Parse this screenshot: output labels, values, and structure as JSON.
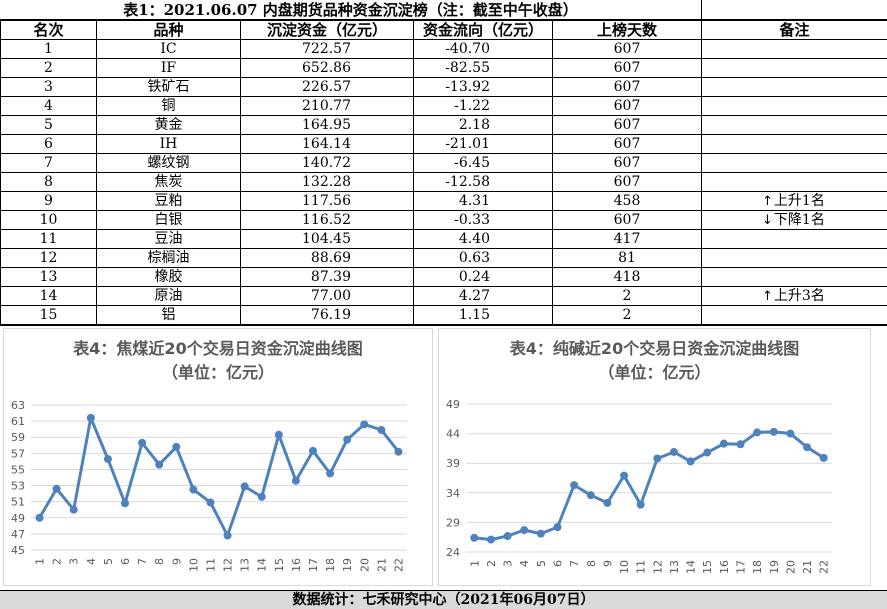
{
  "title": "表1：2021.06.07 内盘期货品种资金沉淀榜（注：截至中午收盘）",
  "headers": [
    "名次",
    "品种",
    "沉淀资金（亿元）",
    "资金流向（亿元）",
    "上榜天数",
    "备注"
  ],
  "rows": [
    {
      "rank": "1",
      "name": "IC",
      "deposit": "722.57",
      "flow": "-40.70",
      "days": "607",
      "note": ""
    },
    {
      "rank": "2",
      "name": "IF",
      "deposit": "652.86",
      "flow": "-82.55",
      "days": "607",
      "note": ""
    },
    {
      "rank": "3",
      "name": "铁矿石",
      "deposit": "226.57",
      "flow": "-13.92",
      "days": "607",
      "note": ""
    },
    {
      "rank": "4",
      "name": "铜",
      "deposit": "210.77",
      "flow": "-1.22",
      "days": "607",
      "note": ""
    },
    {
      "rank": "5",
      "name": "黄金",
      "deposit": "164.95",
      "flow": "2.18",
      "days": "607",
      "note": ""
    },
    {
      "rank": "6",
      "name": "IH",
      "deposit": "164.14",
      "flow": "-21.01",
      "days": "607",
      "note": ""
    },
    {
      "rank": "7",
      "name": "螺纹钢",
      "deposit": "140.72",
      "flow": "-6.45",
      "days": "607",
      "note": ""
    },
    {
      "rank": "8",
      "name": "焦炭",
      "deposit": "132.28",
      "flow": "-12.58",
      "days": "607",
      "note": ""
    },
    {
      "rank": "9",
      "name": "豆粕",
      "deposit": "117.56",
      "flow": "4.31",
      "days": "458",
      "note": "上升1名",
      "arrow": "↑"
    },
    {
      "rank": "10",
      "name": "白银",
      "deposit": "116.52",
      "flow": "-0.33",
      "days": "607",
      "note": "下降1名",
      "arrow": "↓"
    },
    {
      "rank": "11",
      "name": "豆油",
      "deposit": "104.45",
      "flow": "4.40",
      "days": "417",
      "note": ""
    },
    {
      "rank": "12",
      "name": "棕榈油",
      "deposit": "88.69",
      "flow": "0.63",
      "days": "81",
      "note": ""
    },
    {
      "rank": "13",
      "name": "橡胶",
      "deposit": "87.39",
      "flow": "0.24",
      "days": "418",
      "note": ""
    },
    {
      "rank": "14",
      "name": "原油",
      "deposit": "77.00",
      "flow": "4.27",
      "days": "2",
      "note": "上升3名",
      "arrow": "↑"
    },
    {
      "rank": "15",
      "name": "铝",
      "deposit": "76.19",
      "flow": "1.15",
      "days": "2",
      "note": ""
    }
  ],
  "footer": "数据统计：七禾研究中心（2021年06月07日）",
  "chart_data": [
    {
      "type": "line",
      "title": "表4：焦煤近20个交易日资金沉淀曲线图",
      "subtitle": "（单位：亿元）",
      "x": [
        "1",
        "2",
        "3",
        "4",
        "5",
        "6",
        "7",
        "8",
        "9",
        "10",
        "11",
        "12",
        "13",
        "14",
        "15",
        "16",
        "17",
        "18",
        "19",
        "20",
        "21",
        "22"
      ],
      "values": [
        49,
        52.6,
        50,
        61.4,
        56.3,
        50.8,
        58.3,
        55.6,
        57.8,
        52.5,
        50.9,
        46.8,
        52.9,
        51.6,
        59.3,
        53.6,
        57.3,
        54.5,
        58.7,
        60.6,
        59.9,
        57.2
      ],
      "yticks": [
        45,
        47,
        49,
        51,
        53,
        55,
        57,
        59,
        61,
        63
      ],
      "ylim": [
        45,
        63
      ],
      "grid": true,
      "color": "#4f81bd"
    },
    {
      "type": "line",
      "title": "表4：纯碱近20个交易日资金沉淀曲线图",
      "subtitle": "（单位：亿元）",
      "x": [
        "1",
        "2",
        "3",
        "4",
        "5",
        "6",
        "7",
        "8",
        "9",
        "10",
        "11",
        "12",
        "13",
        "14",
        "15",
        "16",
        "17",
        "18",
        "19",
        "20",
        "21",
        "22"
      ],
      "values": [
        26.4,
        26.1,
        26.7,
        27.7,
        27.1,
        28.2,
        35.3,
        33.6,
        32.3,
        36.9,
        32.0,
        39.8,
        40.9,
        39.3,
        40.8,
        42.3,
        42.2,
        44.2,
        44.3,
        44.0,
        41.7,
        39.9
      ],
      "yticks": [
        24,
        29,
        34,
        39,
        44,
        49
      ],
      "ylim": [
        24,
        49
      ],
      "grid": true,
      "color": "#4f81bd"
    }
  ]
}
